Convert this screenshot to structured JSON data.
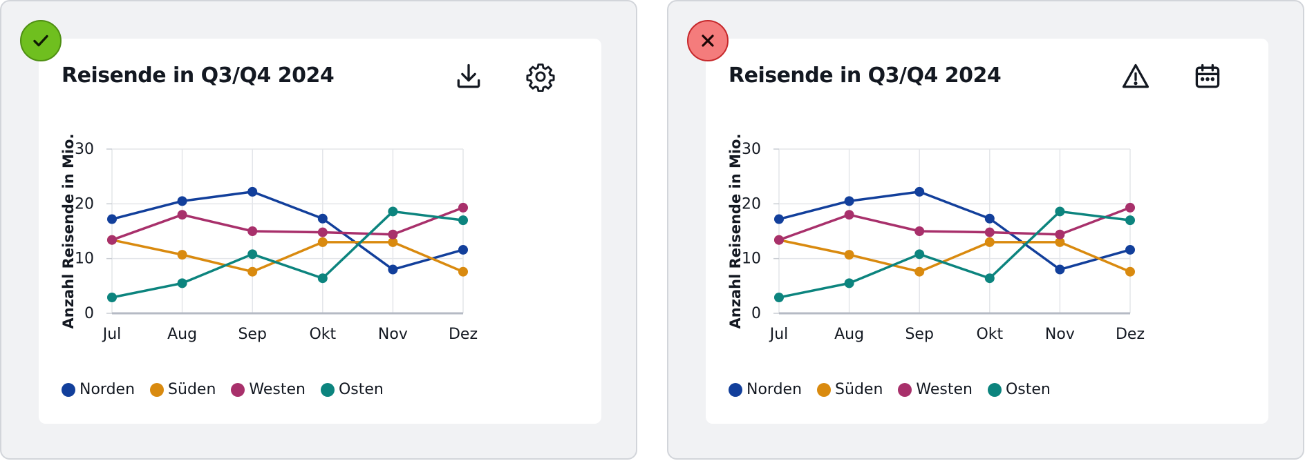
{
  "panels": [
    {
      "status": "correct",
      "status_icon": "check-icon",
      "status_color": "#6fbf1f",
      "title": "Reisende in Q3/Q4 2024",
      "icons": [
        "download-icon",
        "gear-icon"
      ]
    },
    {
      "status": "incorrect",
      "status_icon": "close-icon",
      "status_color": "#f47c7c",
      "title": "Reisende in Q3/Q4 2024",
      "icons": [
        "warning-icon",
        "calendar-icon"
      ]
    }
  ],
  "legend": [
    {
      "label": "Norden",
      "color": "#123f9b"
    },
    {
      "label": "Süden",
      "color": "#d98a0f"
    },
    {
      "label": "Westen",
      "color": "#a8306b"
    },
    {
      "label": "Osten",
      "color": "#0c847e"
    }
  ],
  "chart_data": {
    "type": "line",
    "title": "Reisende in Q3/Q4 2024",
    "ylabel": "Anzahl Reisende in Mio.",
    "xlabel": "",
    "categories": [
      "Jul",
      "Aug",
      "Sep",
      "Okt",
      "Nov",
      "Dez"
    ],
    "yticks": [
      0,
      10,
      20,
      30
    ],
    "ylim": [
      0,
      30
    ],
    "grid": true,
    "legend_position": "bottom-left",
    "series": [
      {
        "name": "Norden",
        "color": "#123f9b",
        "values": [
          17.2,
          20.5,
          22.2,
          17.3,
          8.0,
          11.6
        ]
      },
      {
        "name": "Süden",
        "color": "#d98a0f",
        "values": [
          13.4,
          10.7,
          7.6,
          13.0,
          13.0,
          7.6
        ]
      },
      {
        "name": "Westen",
        "color": "#a8306b",
        "values": [
          13.4,
          18.0,
          15.0,
          14.8,
          14.4,
          19.3
        ]
      },
      {
        "name": "Osten",
        "color": "#0c847e",
        "values": [
          2.9,
          5.5,
          10.8,
          6.4,
          18.6,
          17.0
        ]
      }
    ]
  }
}
